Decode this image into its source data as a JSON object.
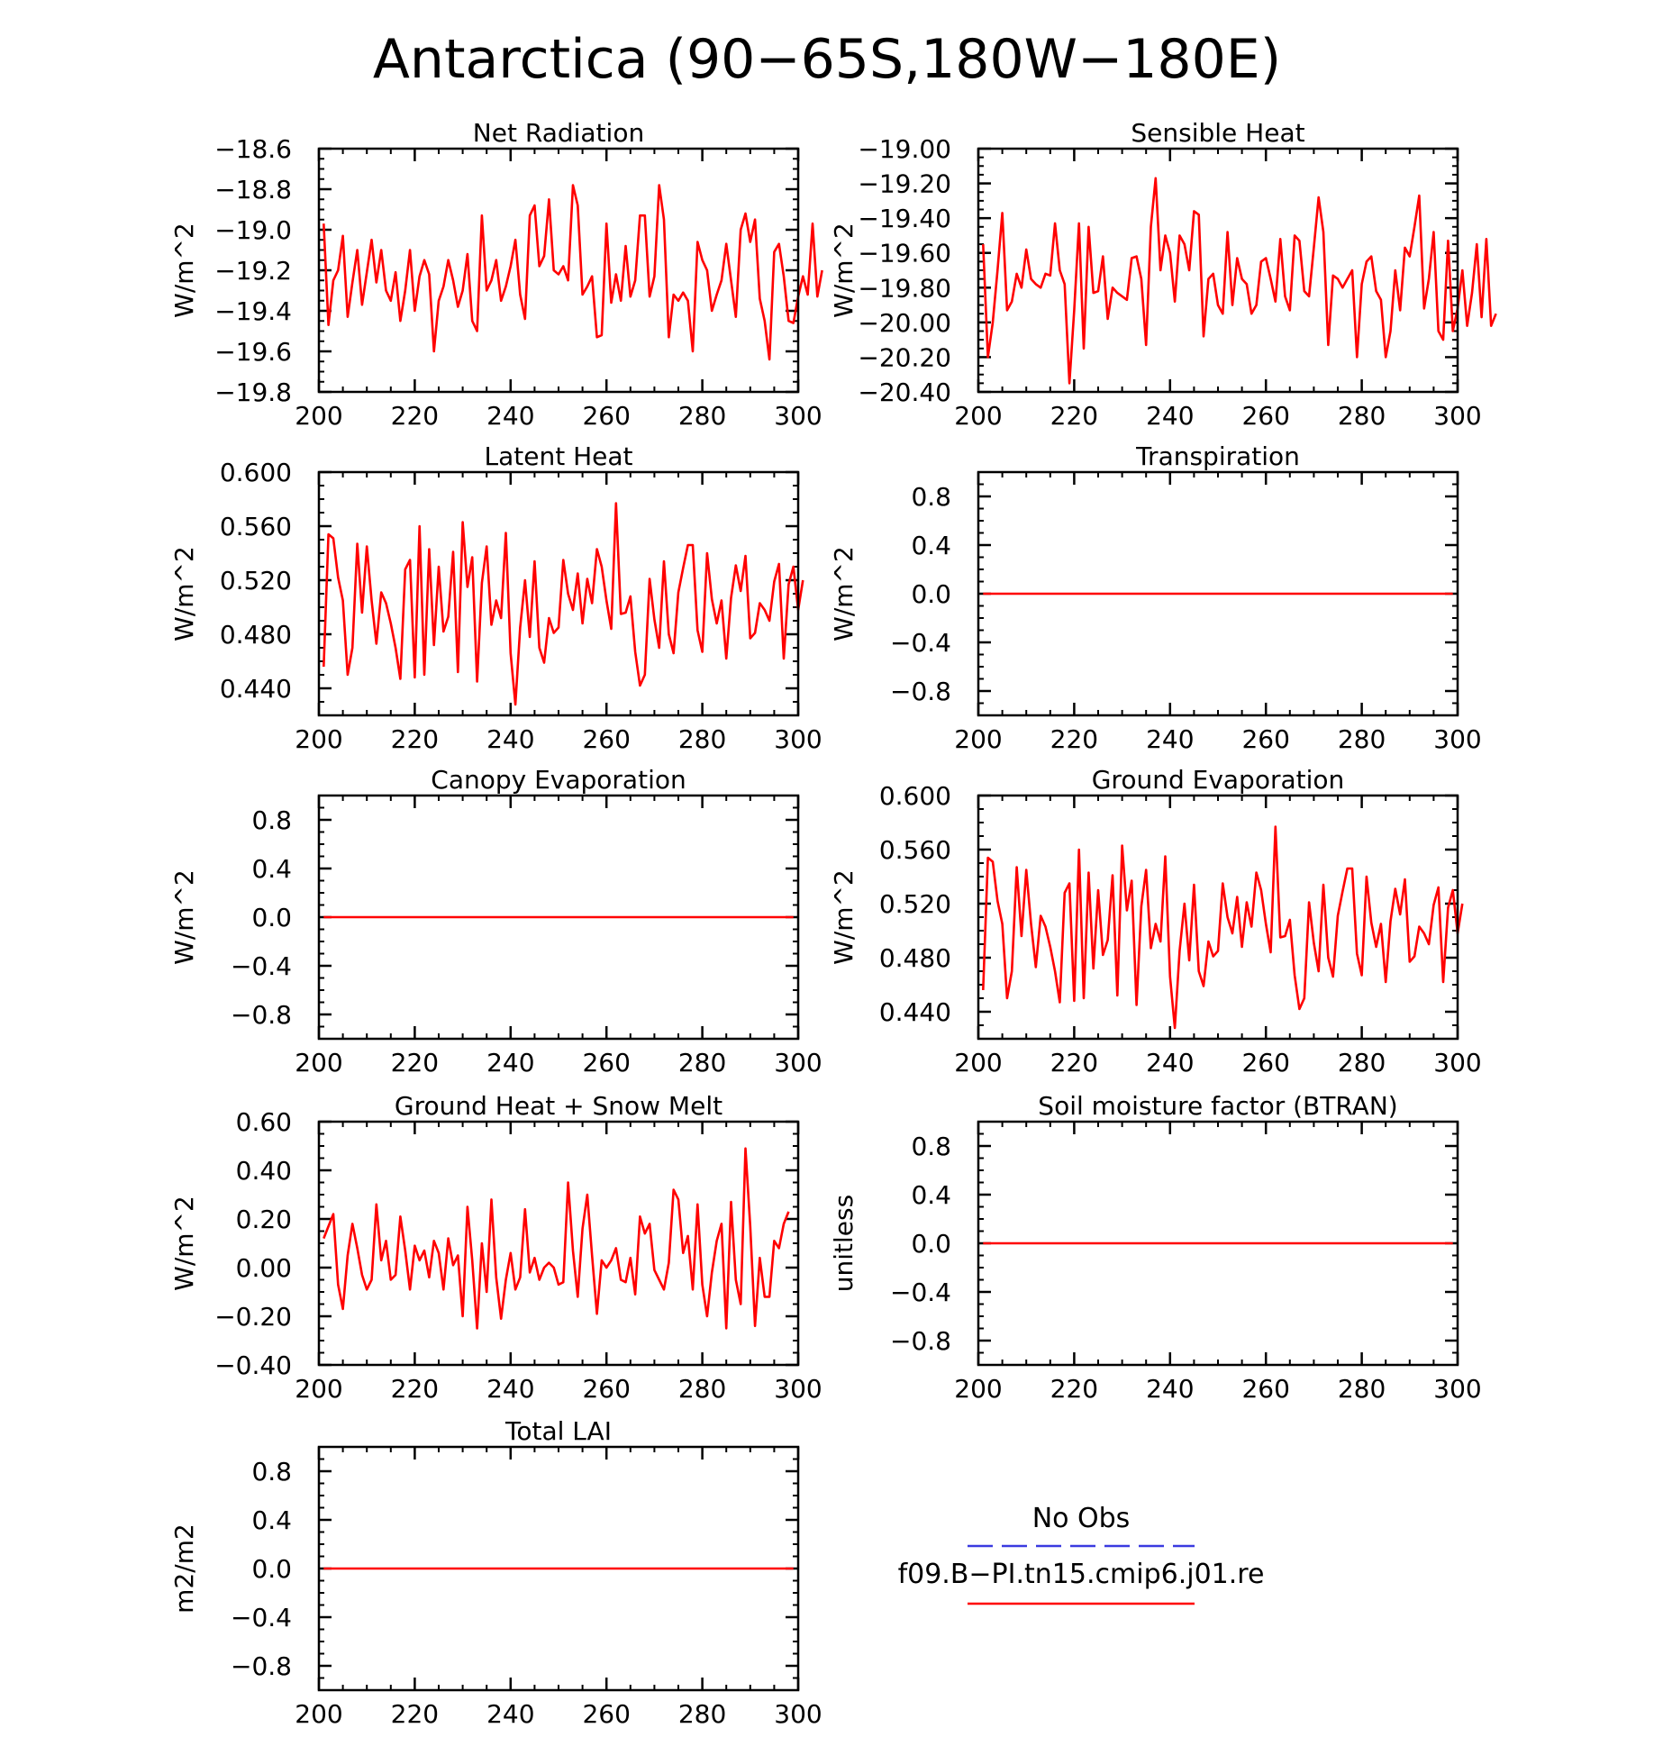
{
  "figure_title": "Antarctica (90−65S,180W−180E)",
  "legend": {
    "entries": [
      {
        "label": "No Obs",
        "color": "#3a3ae0",
        "style": "dashed"
      },
      {
        "label": "f09.B−PI.tn15.cmip6.j01.re",
        "color": "#ff0000",
        "style": "solid"
      }
    ]
  },
  "colors": {
    "series": "#ff0000",
    "axes": "#000000",
    "background": "#ffffff"
  },
  "chart_data": [
    {
      "type": "line",
      "title": "Net Radiation",
      "ylabel": "W/m^2",
      "xlim": [
        200,
        300
      ],
      "ylim": [
        -19.8,
        -18.6
      ],
      "xticks": [
        "200",
        "220",
        "240",
        "260",
        "280",
        "300"
      ],
      "yticks": [
        "−18.6",
        "−18.8",
        "−19.0",
        "−19.2",
        "−19.4",
        "−19.6",
        "−19.8"
      ],
      "x_start": 201,
      "series": [
        {
          "values": [
            -18.97,
            -19.47,
            -19.25,
            -19.2,
            -19.03,
            -19.43,
            -19.26,
            -19.1,
            -19.37,
            -19.21,
            -19.05,
            -19.26,
            -19.1,
            -19.3,
            -19.35,
            -19.21,
            -19.45,
            -19.3,
            -19.1,
            -19.4,
            -19.23,
            -19.15,
            -19.22,
            -19.6,
            -19.35,
            -19.28,
            -19.15,
            -19.25,
            -19.38,
            -19.3,
            -19.12,
            -19.45,
            -19.5,
            -18.93,
            -19.3,
            -19.25,
            -19.15,
            -19.35,
            -19.28,
            -19.18,
            -19.05,
            -19.32,
            -19.44,
            -18.93,
            -18.88,
            -19.18,
            -19.13,
            -18.85,
            -19.2,
            -19.22,
            -19.18,
            -19.25,
            -18.78,
            -18.88,
            -19.32,
            -19.28,
            -19.23,
            -19.53,
            -19.52,
            -18.97,
            -19.36,
            -19.22,
            -19.35,
            -19.08,
            -19.33,
            -19.25,
            -18.93,
            -18.93,
            -19.33,
            -19.23,
            -18.78,
            -18.95,
            -19.53,
            -19.32,
            -19.35,
            -19.31,
            -19.35,
            -19.6,
            -19.06,
            -19.15,
            -19.2,
            -19.4,
            -19.32,
            -19.25,
            -19.07,
            -19.25,
            -19.43,
            -19.0,
            -18.92,
            -19.06,
            -18.95,
            -19.34,
            -19.45,
            -19.64,
            -19.11,
            -19.07,
            -19.23,
            -19.45,
            -19.46,
            -19.33,
            -19.23,
            -19.32,
            -18.97,
            -19.33,
            -19.2
          ]
        }
      ]
    },
    {
      "type": "line",
      "title": "Sensible Heat",
      "ylabel": "W/m^2",
      "xlim": [
        200,
        300
      ],
      "ylim": [
        -20.4,
        -19.0
      ],
      "xticks": [
        "200",
        "220",
        "240",
        "260",
        "280",
        "300"
      ],
      "yticks": [
        "−19.00",
        "−19.20",
        "−19.40",
        "−19.60",
        "−19.80",
        "−20.00",
        "−20.20",
        "−20.40"
      ],
      "x_start": 201,
      "series": [
        {
          "values": [
            -19.55,
            -20.2,
            -20.0,
            -19.7,
            -19.37,
            -19.93,
            -19.88,
            -19.72,
            -19.8,
            -19.58,
            -19.75,
            -19.78,
            -19.8,
            -19.72,
            -19.73,
            -19.43,
            -19.7,
            -19.78,
            -20.35,
            -19.93,
            -19.43,
            -20.15,
            -19.45,
            -19.83,
            -19.82,
            -19.62,
            -19.98,
            -19.8,
            -19.83,
            -19.85,
            -19.87,
            -19.63,
            -19.62,
            -19.75,
            -20.13,
            -19.45,
            -19.17,
            -19.7,
            -19.5,
            -19.6,
            -19.88,
            -19.5,
            -19.55,
            -19.7,
            -19.36,
            -19.38,
            -20.08,
            -19.75,
            -19.72,
            -19.9,
            -19.95,
            -19.48,
            -19.9,
            -19.63,
            -19.75,
            -19.78,
            -19.95,
            -19.9,
            -19.65,
            -19.63,
            -19.75,
            -19.88,
            -19.52,
            -19.85,
            -19.93,
            -19.5,
            -19.53,
            -19.82,
            -19.85,
            -19.57,
            -19.28,
            -19.48,
            -20.13,
            -19.73,
            -19.75,
            -19.8,
            -19.75,
            -19.7,
            -20.2,
            -19.78,
            -19.65,
            -19.62,
            -19.82,
            -19.87,
            -20.2,
            -20.05,
            -19.7,
            -19.93,
            -19.57,
            -19.62,
            -19.45,
            -19.27,
            -19.92,
            -19.75,
            -19.48,
            -20.05,
            -20.1,
            -19.53,
            -20.05,
            -19.92,
            -19.7,
            -20.02,
            -19.83,
            -19.55,
            -19.97,
            -19.52,
            -20.02,
            -19.95
          ]
        }
      ]
    },
    {
      "type": "line",
      "title": "Latent Heat",
      "ylabel": "W/m^2",
      "xlim": [
        200,
        300
      ],
      "ylim": [
        0.42,
        0.6
      ],
      "xticks": [
        "200",
        "220",
        "240",
        "260",
        "280",
        "300"
      ],
      "yticks": [
        "0.600",
        "0.560",
        "0.520",
        "0.480",
        "0.440"
      ],
      "x_start": 201,
      "series": [
        {
          "values": [
            0.456,
            0.554,
            0.551,
            0.522,
            0.505,
            0.45,
            0.47,
            0.547,
            0.496,
            0.545,
            0.505,
            0.473,
            0.511,
            0.503,
            0.488,
            0.47,
            0.447,
            0.528,
            0.535,
            0.448,
            0.56,
            0.45,
            0.543,
            0.472,
            0.53,
            0.482,
            0.493,
            0.541,
            0.452,
            0.563,
            0.515,
            0.537,
            0.445,
            0.518,
            0.545,
            0.487,
            0.505,
            0.492,
            0.555,
            0.466,
            0.428,
            0.485,
            0.52,
            0.478,
            0.534,
            0.47,
            0.459,
            0.492,
            0.481,
            0.485,
            0.535,
            0.51,
            0.498,
            0.525,
            0.488,
            0.521,
            0.503,
            0.543,
            0.53,
            0.505,
            0.484,
            0.577,
            0.495,
            0.496,
            0.508,
            0.467,
            0.442,
            0.45,
            0.521,
            0.491,
            0.47,
            0.534,
            0.48,
            0.466,
            0.511,
            0.529,
            0.546,
            0.546,
            0.483,
            0.467,
            0.54,
            0.506,
            0.488,
            0.505,
            0.462,
            0.507,
            0.531,
            0.512,
            0.538,
            0.477,
            0.481,
            0.503,
            0.498,
            0.49,
            0.519,
            0.532,
            0.462,
            0.517,
            0.53,
            0.498,
            0.52
          ]
        }
      ]
    },
    {
      "type": "line",
      "title": "Transpiration",
      "ylabel": "W/m^2",
      "xlim": [
        200,
        300
      ],
      "ylim": [
        -1.0,
        1.0
      ],
      "xticks": [
        "200",
        "220",
        "240",
        "260",
        "280",
        "300"
      ],
      "yticks": [
        "0.8",
        "0.4",
        "0.0",
        "−0.4",
        "−0.8"
      ],
      "x_start": 201,
      "series": [
        {
          "values": [
            0.0,
            0.0
          ],
          "x": [
            201,
            299
          ]
        }
      ]
    },
    {
      "type": "line",
      "title": "Canopy Evaporation",
      "ylabel": "W/m^2",
      "xlim": [
        200,
        300
      ],
      "ylim": [
        -1.0,
        1.0
      ],
      "xticks": [
        "200",
        "220",
        "240",
        "260",
        "280",
        "300"
      ],
      "yticks": [
        "0.8",
        "0.4",
        "0.0",
        "−0.4",
        "−0.8"
      ],
      "x_start": 201,
      "series": [
        {
          "values": [
            0.0,
            0.0
          ],
          "x": [
            201,
            299
          ]
        }
      ]
    },
    {
      "type": "line",
      "title": "Ground Evaporation",
      "ylabel": "W/m^2",
      "xlim": [
        200,
        300
      ],
      "ylim": [
        0.42,
        0.6
      ],
      "xticks": [
        "200",
        "220",
        "240",
        "260",
        "280",
        "300"
      ],
      "yticks": [
        "0.600",
        "0.560",
        "0.520",
        "0.480",
        "0.440"
      ],
      "x_start": 201,
      "series": [
        {
          "values": [
            0.456,
            0.554,
            0.551,
            0.522,
            0.505,
            0.45,
            0.47,
            0.547,
            0.496,
            0.545,
            0.505,
            0.473,
            0.511,
            0.503,
            0.488,
            0.47,
            0.447,
            0.528,
            0.535,
            0.448,
            0.56,
            0.45,
            0.543,
            0.472,
            0.53,
            0.482,
            0.493,
            0.541,
            0.452,
            0.563,
            0.515,
            0.537,
            0.445,
            0.518,
            0.545,
            0.487,
            0.505,
            0.492,
            0.555,
            0.466,
            0.428,
            0.485,
            0.52,
            0.478,
            0.534,
            0.47,
            0.459,
            0.492,
            0.481,
            0.485,
            0.535,
            0.51,
            0.498,
            0.525,
            0.488,
            0.521,
            0.503,
            0.543,
            0.53,
            0.505,
            0.484,
            0.577,
            0.495,
            0.496,
            0.508,
            0.467,
            0.442,
            0.45,
            0.521,
            0.491,
            0.47,
            0.534,
            0.48,
            0.466,
            0.511,
            0.529,
            0.546,
            0.546,
            0.483,
            0.467,
            0.54,
            0.506,
            0.488,
            0.505,
            0.462,
            0.507,
            0.531,
            0.512,
            0.538,
            0.477,
            0.481,
            0.503,
            0.498,
            0.49,
            0.519,
            0.532,
            0.462,
            0.517,
            0.53,
            0.498,
            0.52
          ]
        }
      ]
    },
    {
      "type": "line",
      "title": "Ground Heat + Snow Melt",
      "ylabel": "W/m^2",
      "xlim": [
        200,
        300
      ],
      "ylim": [
        -0.4,
        0.6
      ],
      "xticks": [
        "200",
        "220",
        "240",
        "260",
        "280",
        "300"
      ],
      "yticks": [
        "0.60",
        "0.40",
        "0.20",
        "0.00",
        "−0.20",
        "−0.40"
      ],
      "x_start": 201,
      "series": [
        {
          "values": [
            0.12,
            0.17,
            0.22,
            -0.07,
            -0.17,
            0.05,
            0.18,
            0.08,
            -0.03,
            -0.09,
            -0.05,
            0.26,
            0.03,
            0.11,
            -0.05,
            -0.03,
            0.21,
            0.07,
            -0.09,
            0.09,
            0.03,
            0.07,
            -0.04,
            0.11,
            0.06,
            -0.09,
            0.12,
            0.01,
            0.05,
            -0.2,
            0.25,
            0.03,
            -0.25,
            0.1,
            -0.1,
            0.28,
            -0.04,
            -0.21,
            -0.05,
            0.06,
            -0.09,
            -0.04,
            0.24,
            -0.02,
            0.04,
            -0.05,
            0.0,
            0.02,
            0.0,
            -0.07,
            -0.06,
            0.35,
            0.07,
            -0.12,
            0.16,
            0.3,
            0.05,
            -0.19,
            0.03,
            0.0,
            0.03,
            0.08,
            -0.05,
            -0.06,
            0.04,
            -0.11,
            0.21,
            0.14,
            0.18,
            -0.01,
            -0.05,
            -0.09,
            0.02,
            0.32,
            0.28,
            0.06,
            0.13,
            -0.09,
            0.26,
            -0.07,
            -0.2,
            -0.02,
            0.11,
            0.18,
            -0.25,
            0.27,
            -0.05,
            -0.15,
            0.49,
            0.17,
            -0.24,
            0.04,
            -0.12,
            -0.12,
            0.11,
            0.08,
            0.18,
            0.23
          ]
        }
      ]
    },
    {
      "type": "line",
      "title": "Soil moisture factor (BTRAN)",
      "ylabel": "unitless",
      "xlim": [
        200,
        300
      ],
      "ylim": [
        -1.0,
        1.0
      ],
      "xticks": [
        "200",
        "220",
        "240",
        "260",
        "280",
        "300"
      ],
      "yticks": [
        "0.8",
        "0.4",
        "0.0",
        "−0.4",
        "−0.8"
      ],
      "x_start": 201,
      "series": [
        {
          "values": [
            0.0,
            0.0
          ],
          "x": [
            201,
            299
          ]
        }
      ]
    },
    {
      "type": "line",
      "title": "Total LAI",
      "ylabel": "m2/m2",
      "xlim": [
        200,
        300
      ],
      "ylim": [
        -1.0,
        1.0
      ],
      "xticks": [
        "200",
        "220",
        "240",
        "260",
        "280",
        "300"
      ],
      "yticks": [
        "0.8",
        "0.4",
        "0.0",
        "−0.4",
        "−0.8"
      ],
      "x_start": 201,
      "series": [
        {
          "values": [
            0.0,
            0.0
          ],
          "x": [
            201,
            299
          ]
        }
      ]
    }
  ]
}
